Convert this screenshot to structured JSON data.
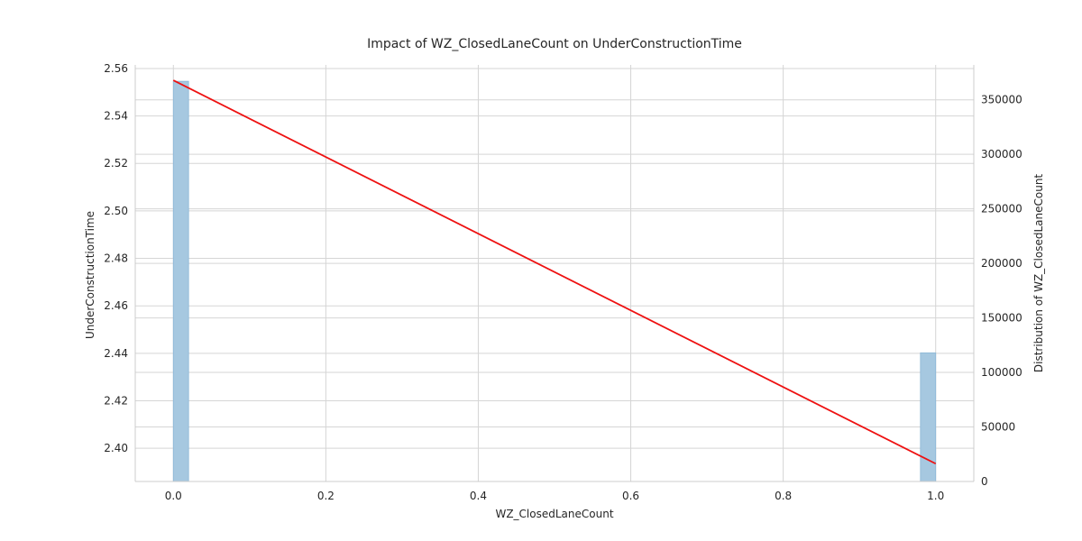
{
  "chart_data": {
    "type": "bar",
    "title": "Impact of WZ_ClosedLaneCount on UnderConstructionTime",
    "xlabel": "WZ_ClosedLaneCount",
    "ylabel": "UnderConstructionTime",
    "y2label": "Distribution of WZ_ClosedLaneCount",
    "xlim": [
      -0.05,
      1.05
    ],
    "ylim": [
      2.386,
      2.5615
    ],
    "y2lim": [
      0,
      382000
    ],
    "x_ticks": [
      "0.0",
      "0.2",
      "0.4",
      "0.6",
      "0.8",
      "1.0"
    ],
    "y_ticks": [
      "2.40",
      "2.42",
      "2.44",
      "2.46",
      "2.48",
      "2.50",
      "2.52",
      "2.54",
      "2.56"
    ],
    "y2_ticks": [
      "0",
      "50000",
      "100000",
      "150000",
      "200000",
      "250000",
      "300000",
      "350000"
    ],
    "grid": true,
    "series": [
      {
        "kind": "histogram",
        "axis": "right",
        "bins": [
          {
            "x0": 0.0,
            "x1": 0.02,
            "count": 367000
          },
          {
            "x0": 0.98,
            "x1": 1.0,
            "count": 118000
          }
        ]
      },
      {
        "kind": "line",
        "axis": "left",
        "x": [
          0.0,
          1.0
        ],
        "y": [
          2.555,
          2.3935
        ]
      }
    ],
    "colors": {
      "bar": "#a6c8e0",
      "bar_edge": "#8bb7d6",
      "line": "#ee1111",
      "grid": "#d5d5d5",
      "spine": "#cccccc"
    }
  }
}
